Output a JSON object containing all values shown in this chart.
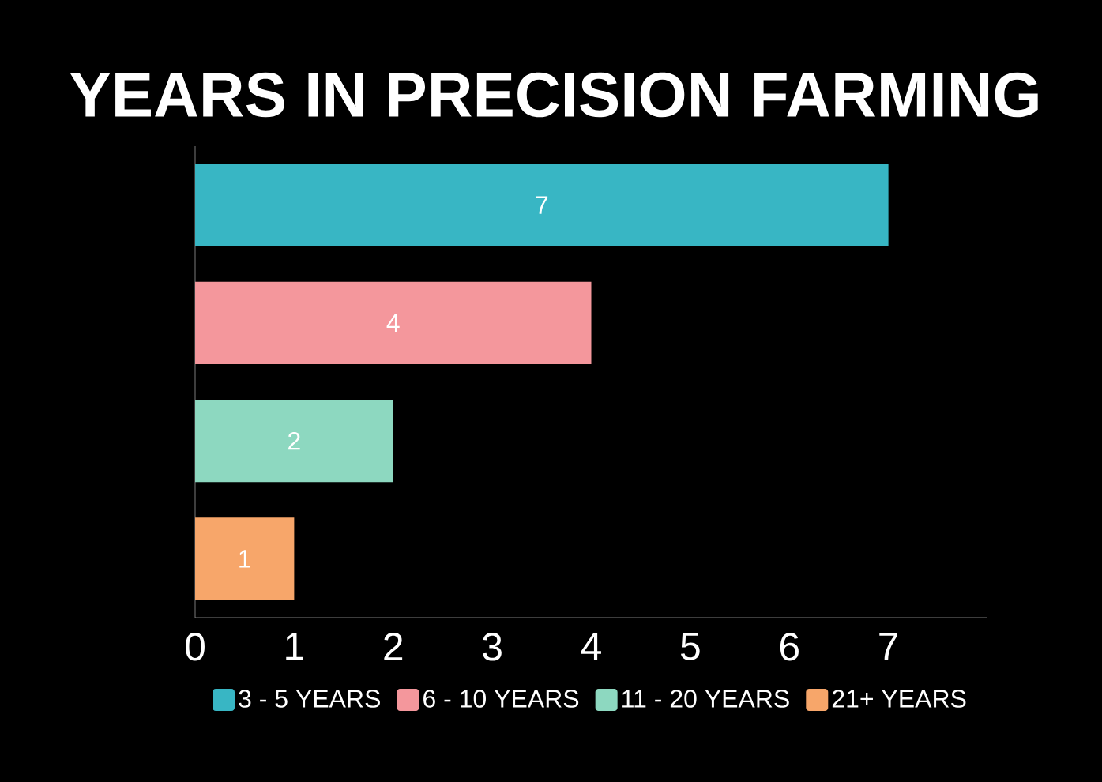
{
  "chart_data": {
    "type": "bar",
    "orientation": "horizontal",
    "title": "YEARS IN PRECISION FARMING",
    "categories": [
      null,
      null,
      null,
      null
    ],
    "series": [
      {
        "name": "3 - 5 YEARS",
        "color": "#38b6c4",
        "values": [
          7,
          null,
          null,
          null
        ]
      },
      {
        "name": "6 - 10 YEARS",
        "color": "#f4979c",
        "values": [
          null,
          4,
          null,
          null
        ]
      },
      {
        "name": "11 - 20 YEARS",
        "color": "#8dd8c0",
        "values": [
          null,
          null,
          2,
          null
        ]
      },
      {
        "name": "21+ YEARS",
        "color": "#f7a66a",
        "values": [
          null,
          null,
          null,
          1
        ]
      }
    ],
    "xlim": [
      0,
      8
    ],
    "xticks": [
      0,
      1,
      2,
      3,
      4,
      5,
      6,
      7
    ],
    "data_labels": true,
    "legend": "bottom"
  }
}
